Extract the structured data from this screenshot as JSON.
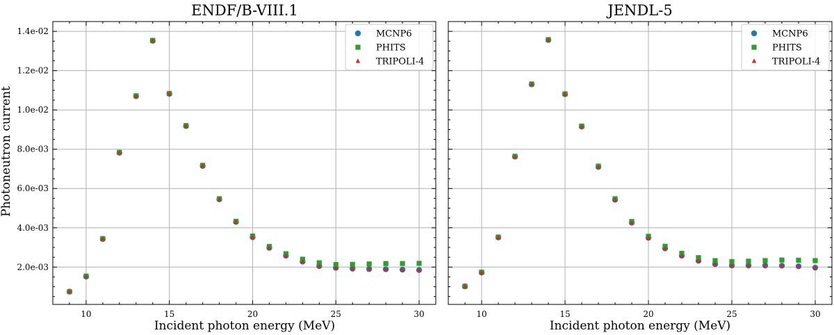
{
  "figure": {
    "ylabel": "Photoneutron current",
    "xlabel": "Incident photon energy (MeV)"
  },
  "chart_data": [
    {
      "type": "scatter",
      "title": "ENDF/B-VIII.1",
      "xlabel": "Incident photon energy (MeV)",
      "ylabel": "Photoneutron current",
      "xlim": [
        8,
        31
      ],
      "ylim": [
        0.0001,
        0.0145
      ],
      "xticks": [
        10,
        15,
        20,
        25,
        30
      ],
      "yticks": [
        0.002,
        0.004,
        0.006,
        0.008,
        0.01,
        0.012,
        0.014
      ],
      "ytick_labels": [
        "2.0e-03",
        "4.0e-03",
        "6.0e-03",
        "8.0e-03",
        "1.0e-02",
        "1.2e-02",
        "1.4e-02"
      ],
      "grid": true,
      "legend_position": "top-right",
      "x": [
        9,
        10,
        11,
        12,
        13,
        14,
        15,
        16,
        17,
        18,
        19,
        20,
        21,
        22,
        23,
        24,
        25,
        26,
        27,
        28,
        29,
        30
      ],
      "series": [
        {
          "name": "MCNP6",
          "marker": "circle",
          "color": "#1f77b4",
          "values": [
            0.00075,
            0.00152,
            0.00343,
            0.00782,
            0.0107,
            0.01352,
            0.01082,
            0.00918,
            0.00715,
            0.00545,
            0.0043,
            0.00352,
            0.00298,
            0.00258,
            0.00228,
            0.00205,
            0.00196,
            0.00192,
            0.0019,
            0.00189,
            0.00187,
            0.00185
          ]
        },
        {
          "name": "PHITS",
          "marker": "square",
          "color": "#2ca02c",
          "values": [
            0.00075,
            0.00154,
            0.00345,
            0.00784,
            0.01072,
            0.01354,
            0.01084,
            0.0092,
            0.00718,
            0.00548,
            0.00433,
            0.00358,
            0.00305,
            0.00268,
            0.0024,
            0.00222,
            0.00213,
            0.00214,
            0.00216,
            0.00218,
            0.00218,
            0.00219
          ]
        },
        {
          "name": "TRIPOLI-4",
          "marker": "triangle",
          "color": "#d62728",
          "values": [
            0.00075,
            0.00152,
            0.00344,
            0.00782,
            0.0107,
            0.01352,
            0.01082,
            0.00918,
            0.00715,
            0.00545,
            0.0043,
            0.00352,
            0.00298,
            0.00258,
            0.00228,
            0.00205,
            0.00196,
            0.00192,
            0.0019,
            0.00189,
            0.00187,
            0.00185
          ]
        }
      ]
    },
    {
      "type": "scatter",
      "title": "JENDL-5",
      "xlabel": "Incident photon energy (MeV)",
      "ylabel": "",
      "xlim": [
        8,
        31
      ],
      "ylim": [
        0.0001,
        0.0145
      ],
      "xticks": [
        10,
        15,
        20,
        25,
        30
      ],
      "yticks": [
        0.002,
        0.004,
        0.006,
        0.008,
        0.01,
        0.012,
        0.014
      ],
      "grid": true,
      "legend_position": "top-right",
      "x": [
        9,
        10,
        11,
        12,
        13,
        14,
        15,
        16,
        17,
        18,
        19,
        20,
        21,
        22,
        23,
        24,
        25,
        26,
        27,
        28,
        29,
        30
      ],
      "series": [
        {
          "name": "MCNP6",
          "marker": "circle",
          "color": "#1f77b4",
          "values": [
            0.00102,
            0.00172,
            0.00351,
            0.00762,
            0.0113,
            0.01356,
            0.0108,
            0.00915,
            0.0071,
            0.00543,
            0.00426,
            0.00349,
            0.00295,
            0.00258,
            0.00232,
            0.00215,
            0.00208,
            0.00208,
            0.00208,
            0.00207,
            0.00204,
            0.00197
          ]
        },
        {
          "name": "PHITS",
          "marker": "square",
          "color": "#2ca02c",
          "values": [
            0.00102,
            0.00174,
            0.00353,
            0.00764,
            0.01132,
            0.01358,
            0.01082,
            0.00918,
            0.00714,
            0.00548,
            0.00432,
            0.00357,
            0.00306,
            0.0027,
            0.00248,
            0.00233,
            0.00228,
            0.0023,
            0.00233,
            0.00236,
            0.00235,
            0.00233
          ]
        },
        {
          "name": "TRIPOLI-4",
          "marker": "triangle",
          "color": "#d62728",
          "values": [
            0.00102,
            0.00172,
            0.00351,
            0.00762,
            0.0113,
            0.01356,
            0.0108,
            0.00915,
            0.0071,
            0.00543,
            0.00426,
            0.00349,
            0.00295,
            0.00258,
            0.00232,
            0.00215,
            0.00208,
            0.00208,
            0.00208,
            0.00207,
            0.00204,
            0.00197
          ]
        }
      ]
    }
  ]
}
